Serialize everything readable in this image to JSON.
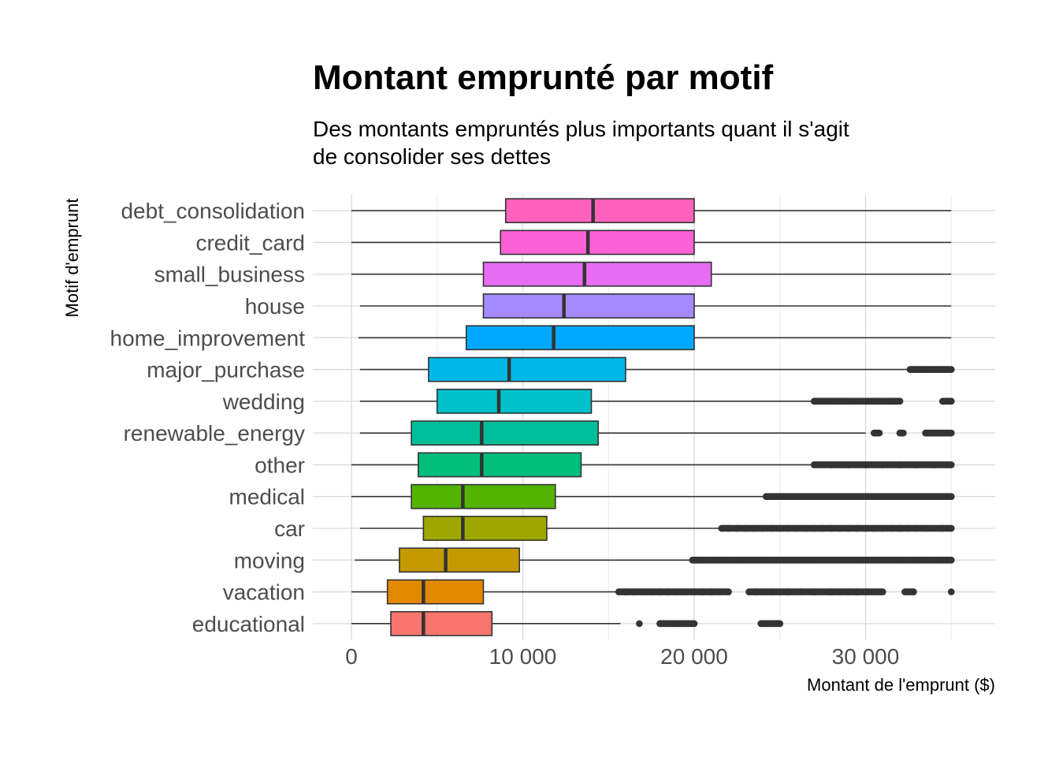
{
  "chart_data": {
    "type": "boxplot",
    "orientation": "horizontal",
    "title": "Montant emprunté par motif",
    "subtitle": [
      "Des montants empruntés plus importants quant il s'agit",
      "de consolider ses dettes"
    ],
    "xlabel": "Montant de l'emprunt ($)",
    "ylabel": "Motif d'emprunt",
    "xlim": [
      -1000,
      36000
    ],
    "xticks": [
      0,
      10000,
      20000,
      30000
    ],
    "xtick_labels": [
      "0",
      "10 000",
      "20 000",
      "30 000"
    ],
    "grid": true,
    "legend": "none",
    "categories": [
      {
        "name": "debt_consolidation",
        "color": "#FF62BC",
        "min": 0,
        "q1": 9000,
        "median": 14100,
        "q3": 20000,
        "max": 35000,
        "outliers": []
      },
      {
        "name": "credit_card",
        "color": "#FC61D5",
        "min": 0,
        "q1": 8700,
        "median": 13800,
        "q3": 20000,
        "max": 35000,
        "outliers": []
      },
      {
        "name": "small_business",
        "color": "#E76BF3",
        "min": 0,
        "q1": 7700,
        "median": 13600,
        "q3": 21000,
        "max": 35000,
        "outliers": []
      },
      {
        "name": "house",
        "color": "#A58AFF",
        "min": 500,
        "q1": 7700,
        "median": 12400,
        "q3": 20000,
        "max": 35000,
        "outliers": []
      },
      {
        "name": "home_improvement",
        "color": "#00A9FF",
        "min": 400,
        "q1": 6700,
        "median": 11800,
        "q3": 20000,
        "max": 35000,
        "outliers": []
      },
      {
        "name": "major_purchase",
        "color": "#00B8E7",
        "min": 500,
        "q1": 4500,
        "median": 9200,
        "q3": 16000,
        "max": 32500,
        "outliers": [
          32600,
          32800,
          33000,
          33200,
          33400,
          33600,
          33800,
          34000,
          34200,
          34400,
          34600,
          34800,
          35000
        ]
      },
      {
        "name": "wedding",
        "color": "#00C1C9",
        "min": 500,
        "q1": 5000,
        "median": 8600,
        "q3": 14000,
        "max": 26800,
        "outliers": [
          27000,
          27200,
          27400,
          27700,
          28000,
          28300,
          28600,
          29000,
          29200,
          30000,
          30300,
          30600,
          31000,
          31500,
          31700,
          32000,
          34500,
          35000
        ]
      },
      {
        "name": "renewable_energy",
        "color": "#00BE99",
        "min": 500,
        "q1": 3500,
        "median": 7600,
        "q3": 14400,
        "max": 30000,
        "outliers": [
          30500,
          30800,
          32000,
          32200,
          33500,
          34000,
          35000
        ]
      },
      {
        "name": "other",
        "color": "#00BF7D",
        "min": 0,
        "q1": 3900,
        "median": 7600,
        "q3": 13400,
        "max": 27000,
        "outliers": [
          27000,
          28000,
          29000,
          30000,
          31000,
          32000,
          33000,
          34000,
          35000
        ]
      },
      {
        "name": "medical",
        "color": "#53B400",
        "min": 0,
        "q1": 3500,
        "median": 6500,
        "q3": 11900,
        "max": 24000,
        "outliers": [
          24200,
          24500,
          25000,
          25500,
          26000,
          26500,
          27000,
          27500,
          28000,
          28500,
          29000,
          29500,
          30000,
          30500,
          31500,
          31800,
          32500,
          33000,
          33500,
          34000,
          34500,
          35000
        ]
      },
      {
        "name": "car",
        "color": "#9DA700",
        "min": 500,
        "q1": 4200,
        "median": 6500,
        "q3": 11400,
        "max": 21500,
        "outliers": [
          21600,
          22000,
          22500,
          23000,
          23500,
          24000,
          24500,
          25000,
          25500,
          26000,
          26500,
          27000,
          27500,
          28000,
          28500,
          29000,
          29500,
          30000,
          30500,
          31000,
          31500,
          32000,
          32500,
          33000,
          33500,
          34500,
          35000
        ]
      },
      {
        "name": "moving",
        "color": "#C49A00",
        "min": 200,
        "q1": 2800,
        "median": 5500,
        "q3": 9800,
        "max": 19800,
        "outliers": [
          19900,
          20200,
          20500,
          21000,
          21500,
          22000,
          22500,
          23000,
          23500,
          24000,
          24500,
          25000,
          25500,
          26000,
          26500,
          27000,
          27500,
          28000,
          28500,
          29000,
          29500,
          30000,
          30500,
          31000,
          31500,
          32000,
          33000,
          33500,
          34500,
          35000
        ]
      },
      {
        "name": "vacation",
        "color": "#E38900",
        "min": 0,
        "q1": 2100,
        "median": 4200,
        "q3": 7700,
        "max": 15500,
        "outliers": [
          15600,
          16000,
          16500,
          17000,
          17500,
          18000,
          18500,
          19000,
          19500,
          20000,
          20500,
          21000,
          21500,
          22000,
          23200,
          23600,
          24000,
          24500,
          25000,
          25500,
          26200,
          27000,
          28000,
          28500,
          29000,
          29500,
          30000,
          31000,
          32300,
          32800,
          35000
        ]
      },
      {
        "name": "educational",
        "color": "#F8766D",
        "min": 0,
        "q1": 2300,
        "median": 4200,
        "q3": 8200,
        "max": 15700,
        "outliers": [
          16800,
          18000,
          19000,
          20000,
          23900,
          24300,
          25000
        ]
      }
    ]
  }
}
